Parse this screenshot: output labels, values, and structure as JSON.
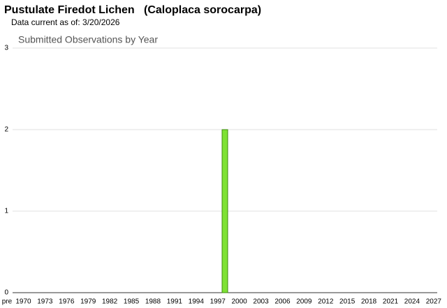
{
  "header": {
    "title": "Pustulate Firedot Lichen   (Caloplaca sorocarpa)",
    "subtitle": "Data current as of: 3/20/2026"
  },
  "chart_data": {
    "type": "bar",
    "title": "Submitted Observations by Year",
    "categories": [
      "pre",
      "1970",
      null,
      null,
      "1973",
      null,
      null,
      "1976",
      null,
      null,
      "1979",
      null,
      null,
      "1982",
      null,
      null,
      "1985",
      null,
      null,
      "1988",
      null,
      null,
      "1991",
      null,
      null,
      "1994",
      null,
      null,
      "1997",
      null,
      null,
      "2000",
      null,
      null,
      "2003",
      null,
      null,
      "2006",
      null,
      null,
      "2009",
      null,
      null,
      "2012",
      null,
      null,
      "2015",
      null,
      null,
      "2018",
      null,
      null,
      "2021",
      null,
      null,
      "2024",
      null,
      null,
      "2027"
    ],
    "values": [
      0,
      0,
      0,
      0,
      0,
      0,
      0,
      0,
      0,
      0,
      0,
      0,
      0,
      0,
      0,
      0,
      0,
      0,
      0,
      0,
      0,
      0,
      0,
      0,
      0,
      0,
      0,
      0,
      0,
      2,
      0,
      0,
      0,
      0,
      0,
      0,
      0,
      0,
      0,
      0,
      0,
      0,
      0,
      0,
      0,
      0,
      0,
      0,
      0,
      0,
      0,
      0,
      0,
      0,
      0,
      0,
      0,
      0,
      0
    ],
    "color": "#7ee234",
    "ylim": [
      0,
      3
    ],
    "yticks": [
      0,
      1,
      2,
      3
    ],
    "grid": true
  }
}
